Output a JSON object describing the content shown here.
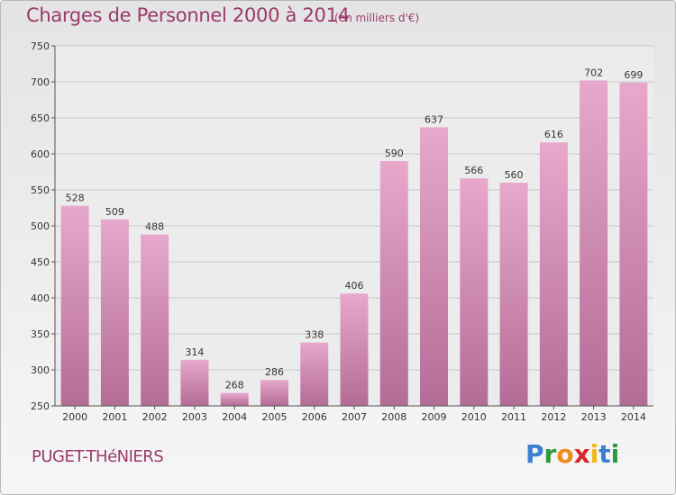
{
  "header": {
    "title": "Charges de Personnel 2000 à 2014",
    "subtitle": "(en milliers d'€)"
  },
  "footer": {
    "commune": "PUGET-THéNIERS",
    "logo_letters": [
      {
        "char": "P",
        "color": "#3b7fd0"
      },
      {
        "char": "r",
        "color": "#2f9a3a"
      },
      {
        "char": "o",
        "color": "#f08a1c"
      },
      {
        "char": "x",
        "color": "#d8262b"
      },
      {
        "char": "i",
        "color": "#f0b81c"
      },
      {
        "char": "t",
        "color": "#3b7fd0"
      },
      {
        "char": "i",
        "color": "#2f9a3a"
      }
    ]
  },
  "colors": {
    "bar_top": "#e7a8cc",
    "bar_bottom": "#b36c96",
    "grid": "#c8c8c8",
    "text_accent": "#9a3a6a"
  },
  "chart_data": {
    "type": "bar",
    "categories": [
      "2000",
      "2001",
      "2002",
      "2003",
      "2004",
      "2005",
      "2006",
      "2007",
      "2008",
      "2009",
      "2010",
      "2011",
      "2012",
      "2013",
      "2014"
    ],
    "values": [
      528,
      509,
      488,
      314,
      268,
      286,
      338,
      406,
      590,
      637,
      566,
      560,
      616,
      702,
      699
    ],
    "ylim": [
      250,
      750
    ],
    "yticks": [
      250,
      300,
      350,
      400,
      450,
      500,
      550,
      600,
      650,
      700,
      750
    ],
    "grid": true
  }
}
